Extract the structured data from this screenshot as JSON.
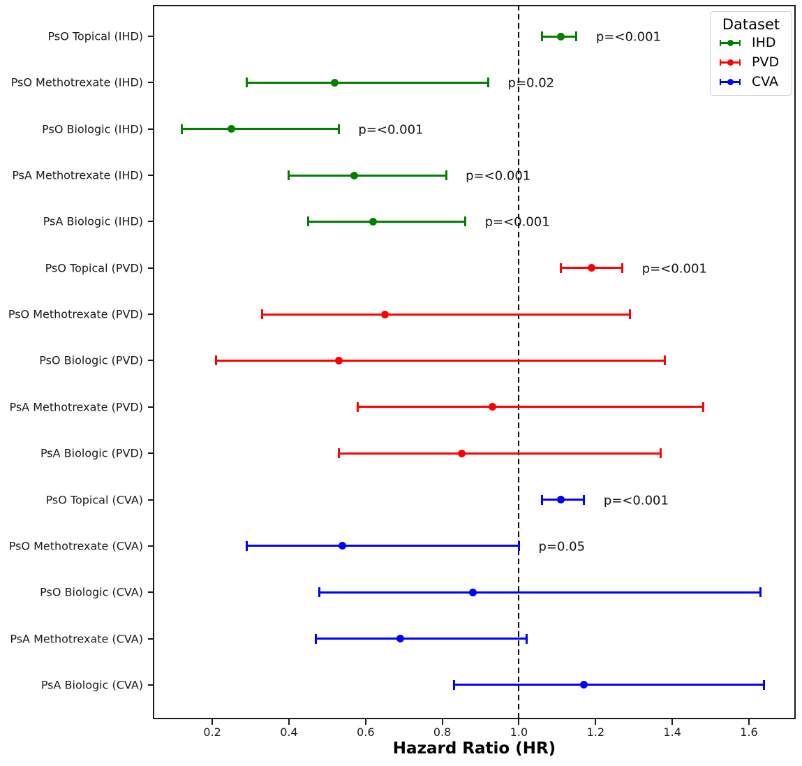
{
  "legend": {
    "title": "Dataset",
    "items": [
      {
        "label": "IHD",
        "color": "#008000"
      },
      {
        "label": "PVD",
        "color": "#ff0000"
      },
      {
        "label": "CVA",
        "color": "#0000ff"
      }
    ]
  },
  "chart_data": {
    "type": "scatter",
    "subtype": "forest-plot-errorbar",
    "title": "",
    "xlabel": "Hazard Ratio (HR)",
    "ylabel": "",
    "xlim": [
      0.045,
      1.722
    ],
    "x_ticks": [
      0.2,
      0.4,
      0.6,
      0.8,
      1.0,
      1.2,
      1.4,
      1.6
    ],
    "x_tick_labels": [
      "0.2",
      "0.4",
      "0.6",
      "0.8",
      "1.0",
      "1.2",
      "1.4",
      "1.6"
    ],
    "reference_line_x": 1.0,
    "grid": false,
    "legend_position": "upper right",
    "rows": [
      {
        "label": "PsO Topical (IHD)",
        "dataset": "IHD",
        "color": "#008000",
        "hr": 1.11,
        "ci_low": 1.06,
        "ci_high": 1.15,
        "p": "p=<0.001"
      },
      {
        "label": "PsO Methotrexate (IHD)",
        "dataset": "IHD",
        "color": "#008000",
        "hr": 0.52,
        "ci_low": 0.29,
        "ci_high": 0.92,
        "p": "p=0.02"
      },
      {
        "label": "PsO Biologic (IHD)",
        "dataset": "IHD",
        "color": "#008000",
        "hr": 0.25,
        "ci_low": 0.12,
        "ci_high": 0.53,
        "p": "p=<0.001"
      },
      {
        "label": "PsA Methotrexate (IHD)",
        "dataset": "IHD",
        "color": "#008000",
        "hr": 0.57,
        "ci_low": 0.4,
        "ci_high": 0.81,
        "p": "p=<0.001"
      },
      {
        "label": "PsA Biologic (IHD)",
        "dataset": "IHD",
        "color": "#008000",
        "hr": 0.62,
        "ci_low": 0.45,
        "ci_high": 0.86,
        "p": "p=<0.001"
      },
      {
        "label": "PsO Topical (PVD)",
        "dataset": "PVD",
        "color": "#ff0000",
        "hr": 1.19,
        "ci_low": 1.11,
        "ci_high": 1.27,
        "p": "p=<0.001"
      },
      {
        "label": "PsO Methotrexate (PVD)",
        "dataset": "PVD",
        "color": "#ff0000",
        "hr": 0.65,
        "ci_low": 0.33,
        "ci_high": 1.29,
        "p": null
      },
      {
        "label": "PsO Biologic (PVD)",
        "dataset": "PVD",
        "color": "#ff0000",
        "hr": 0.53,
        "ci_low": 0.21,
        "ci_high": 1.38,
        "p": null
      },
      {
        "label": "PsA Methotrexate (PVD)",
        "dataset": "PVD",
        "color": "#ff0000",
        "hr": 0.93,
        "ci_low": 0.58,
        "ci_high": 1.48,
        "p": null
      },
      {
        "label": "PsA Biologic (PVD)",
        "dataset": "PVD",
        "color": "#ff0000",
        "hr": 0.85,
        "ci_low": 0.53,
        "ci_high": 1.37,
        "p": null
      },
      {
        "label": "PsO Topical (CVA)",
        "dataset": "CVA",
        "color": "#0000ff",
        "hr": 1.11,
        "ci_low": 1.06,
        "ci_high": 1.17,
        "p": "p=<0.001"
      },
      {
        "label": "PsO Methotrexate (CVA)",
        "dataset": "CVA",
        "color": "#0000ff",
        "hr": 0.54,
        "ci_low": 0.29,
        "ci_high": 1.0,
        "p": "p=0.05"
      },
      {
        "label": "PsO Biologic (CVA)",
        "dataset": "CVA",
        "color": "#0000ff",
        "hr": 0.88,
        "ci_low": 0.48,
        "ci_high": 1.63,
        "p": null
      },
      {
        "label": "PsA Methotrexate (CVA)",
        "dataset": "CVA",
        "color": "#0000ff",
        "hr": 0.69,
        "ci_low": 0.47,
        "ci_high": 1.02,
        "p": null
      },
      {
        "label": "PsA Biologic (CVA)",
        "dataset": "CVA",
        "color": "#0000ff",
        "hr": 1.17,
        "ci_low": 0.83,
        "ci_high": 1.64,
        "p": null
      }
    ]
  }
}
